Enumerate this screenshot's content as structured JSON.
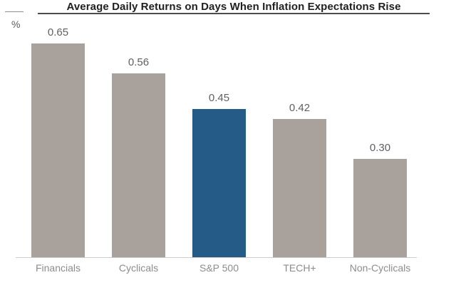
{
  "chart_data": {
    "type": "bar",
    "title": "Average Daily Returns on Days When Inflation Expectations Rise",
    "ylabel": "%",
    "xlabel": "",
    "categories": [
      "Financials",
      "Cyclicals",
      "S&P 500",
      "TECH+",
      "Non-Cyclicals"
    ],
    "values": [
      0.65,
      0.56,
      0.45,
      0.42,
      0.3
    ],
    "value_labels": [
      "0.65",
      "0.56",
      "0.45",
      "0.42",
      "0.30"
    ],
    "highlight_index": 2,
    "highlight_category": "S&P 500",
    "ylim": [
      0,
      0.72
    ],
    "grid": false,
    "legend": "none",
    "colors": {
      "bar": "#a9a19b",
      "highlight": "#255c87",
      "baseline": "#cccccc",
      "title": "#1f1f1f",
      "title_underline": "#4d4d4d",
      "value_label": "#5f5f5f",
      "category_label": "#8c8c8c",
      "background": "#ffffff"
    }
  }
}
